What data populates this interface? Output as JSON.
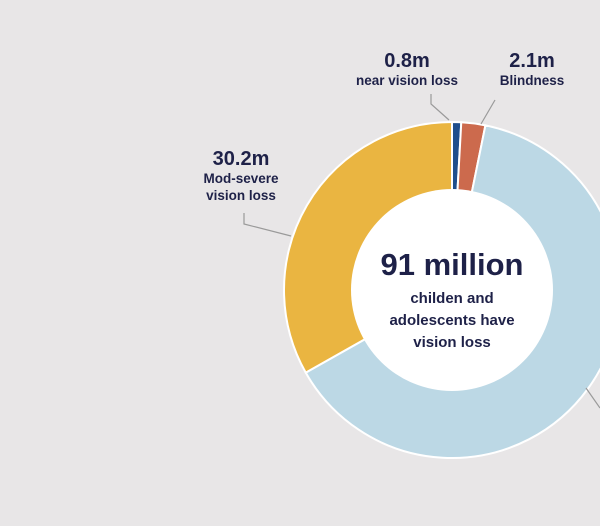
{
  "chart_data": {
    "type": "pie",
    "variant": "donut",
    "center": {
      "headline": "91 million",
      "caption_lines": [
        "childen and",
        "adolescents have",
        "vision loss"
      ]
    },
    "slices": [
      {
        "value": 0.8,
        "value_label": "0.8m",
        "label_lines": [
          "near vision loss"
        ],
        "color": "#1f4e8c"
      },
      {
        "value": 2.1,
        "value_label": "2.1m",
        "label_lines": [
          "Blindness"
        ],
        "color": "#cc6a4d"
      },
      {
        "value": 57.9,
        "value_label": "",
        "label_lines": [],
        "color": "#bcd8e5"
      },
      {
        "value": 30.2,
        "value_label": "30.2m",
        "label_lines": [
          "Mod-severe",
          "vision loss"
        ],
        "color": "#eab541"
      }
    ],
    "total": 91
  }
}
